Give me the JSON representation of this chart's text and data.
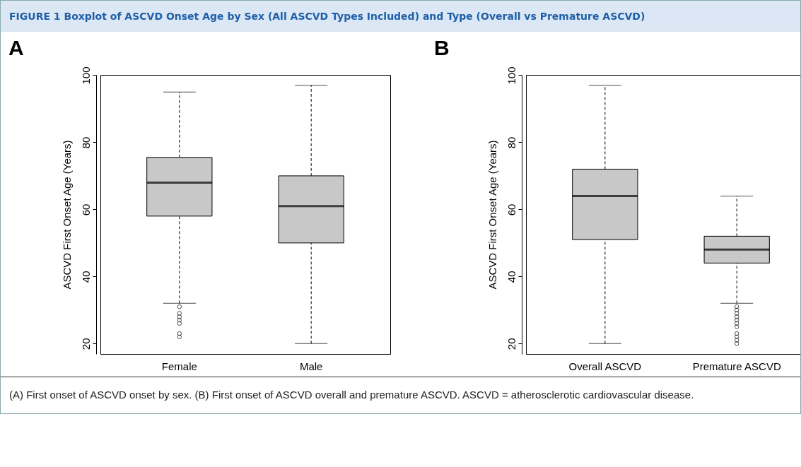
{
  "chart_data": [
    {
      "type": "box",
      "title": "A",
      "ylabel": "ASCVD First Onset Age (Years)",
      "categories": [
        "Female",
        "Male"
      ],
      "boxes": [
        {
          "low": 32,
          "q1": 58,
          "median": 68,
          "q3": 75.5,
          "high": 95,
          "outliers": [
            31,
            29,
            28,
            27,
            26,
            23,
            22
          ]
        },
        {
          "low": 20,
          "q1": 50,
          "median": 61,
          "q3": 70,
          "high": 97
        }
      ],
      "colors": [
        "#c8c8c8",
        "#c8c8c8"
      ],
      "ylim": [
        16.9,
        100.1
      ],
      "yticks": [
        20,
        40,
        60,
        80,
        100
      ],
      "grid": false,
      "marker": "circle",
      "line_style": "dashed",
      "annotations": [
        "FIGURE 1 Boxplot of ASCVD Onset Age by Sex (All ASCVD Types Included) and Type (Overall vs Premature ASCVD)"
      ]
    },
    {
      "type": "box",
      "title": "B",
      "ylabel": "ASCVD First Onset Age (Years)",
      "categories": [
        "Overall ASCVD",
        "Premature ASCVD"
      ],
      "boxes": [
        {
          "low": 20,
          "q1": 51,
          "median": 64,
          "q3": 72,
          "high": 97
        },
        {
          "low": 32,
          "q1": 44,
          "median": 48,
          "q3": 52,
          "high": 64,
          "outliers": [
            31,
            30,
            29,
            28,
            27,
            26,
            25,
            23,
            22,
            21,
            20
          ]
        }
      ],
      "colors": [
        "#c8c8c8",
        "#c8c8c8"
      ],
      "ylim": [
        16.9,
        100.1
      ],
      "yticks": [
        20,
        40,
        60,
        80,
        100
      ],
      "grid": false,
      "marker": "circle",
      "line_style": "dashed",
      "annotations": [
        "(A) First onset of ASCVD onset by sex. (B) First onset of ASCVD overall and premature ASCVD. ASCVD = atherosclerotic cardiovascular disease."
      ]
    }
  ]
}
